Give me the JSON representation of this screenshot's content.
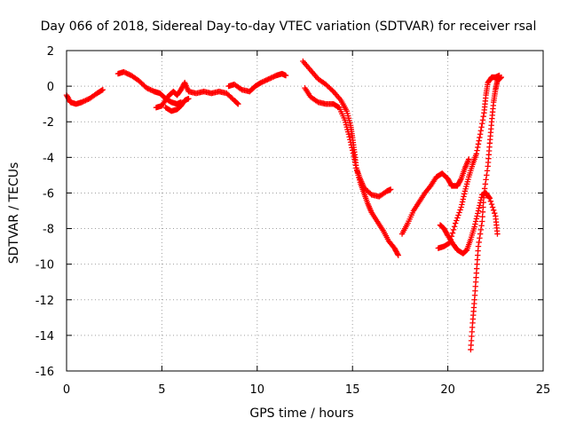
{
  "chart_data": {
    "type": "scatter",
    "title": "Day 066 of 2018, Sidereal Day-to-day VTEC variation (SDTVAR) for receiver rsal",
    "xlabel": "GPS time / hours",
    "ylabel": "SDTVAR / TECUs",
    "xlim": [
      0,
      25
    ],
    "ylim": [
      -16,
      2
    ],
    "xticks": [
      0,
      5,
      10,
      15,
      20,
      25
    ],
    "yticks": [
      -16,
      -14,
      -12,
      -10,
      -8,
      -6,
      -4,
      -2,
      0,
      2
    ],
    "grid": true,
    "marker": "plus",
    "color": "#ff0000",
    "series": [
      {
        "values": [
          [
            0.0,
            -0.5
          ],
          [
            0.2,
            -0.9
          ],
          [
            0.5,
            -1.0
          ],
          [
            0.8,
            -0.9
          ],
          [
            1.2,
            -0.7
          ],
          [
            1.6,
            -0.4
          ],
          [
            1.9,
            -0.2
          ]
        ]
      },
      {
        "values": [
          [
            2.7,
            0.7
          ],
          [
            3.0,
            0.8
          ],
          [
            3.4,
            0.6
          ],
          [
            3.8,
            0.3
          ],
          [
            4.2,
            -0.1
          ],
          [
            4.6,
            -0.3
          ],
          [
            4.9,
            -0.4
          ],
          [
            5.2,
            -0.7
          ],
          [
            5.5,
            -0.9
          ],
          [
            5.8,
            -1.0
          ],
          [
            6.0,
            -0.9
          ]
        ]
      },
      {
        "values": [
          [
            4.7,
            -1.2
          ],
          [
            5.0,
            -1.1
          ],
          [
            5.3,
            -0.6
          ],
          [
            5.6,
            -0.3
          ],
          [
            5.8,
            -0.5
          ],
          [
            6.0,
            -0.2
          ],
          [
            6.2,
            0.2
          ],
          [
            6.4,
            -0.3
          ],
          [
            6.8,
            -0.4
          ],
          [
            7.2,
            -0.3
          ],
          [
            7.6,
            -0.4
          ],
          [
            8.0,
            -0.3
          ],
          [
            8.4,
            -0.4
          ],
          [
            8.8,
            -0.8
          ],
          [
            9.0,
            -1.0
          ]
        ]
      },
      {
        "values": [
          [
            5.2,
            -1.2
          ],
          [
            5.5,
            -1.4
          ],
          [
            5.8,
            -1.3
          ],
          [
            6.0,
            -1.1
          ],
          [
            6.2,
            -0.8
          ],
          [
            6.4,
            -0.7
          ]
        ]
      },
      {
        "values": [
          [
            8.5,
            0.0
          ],
          [
            8.8,
            0.1
          ],
          [
            9.2,
            -0.2
          ],
          [
            9.6,
            -0.3
          ],
          [
            9.9,
            0.0
          ],
          [
            10.2,
            0.2
          ],
          [
            10.6,
            0.4
          ],
          [
            11.0,
            0.6
          ],
          [
            11.3,
            0.7
          ],
          [
            11.5,
            0.6
          ]
        ]
      },
      {
        "values": [
          [
            12.4,
            1.4
          ],
          [
            12.8,
            0.9
          ],
          [
            13.2,
            0.4
          ],
          [
            13.6,
            0.1
          ],
          [
            14.0,
            -0.3
          ],
          [
            14.4,
            -0.8
          ],
          [
            14.7,
            -1.4
          ],
          [
            14.9,
            -2.2
          ],
          [
            15.0,
            -2.9
          ],
          [
            15.1,
            -3.7
          ],
          [
            15.2,
            -4.6
          ],
          [
            15.4,
            -5.2
          ],
          [
            15.6,
            -5.7
          ],
          [
            16.0,
            -6.1
          ],
          [
            16.4,
            -6.2
          ],
          [
            16.8,
            -5.9
          ],
          [
            17.0,
            -5.8
          ]
        ]
      },
      {
        "values": [
          [
            12.5,
            -0.1
          ],
          [
            12.8,
            -0.6
          ],
          [
            13.2,
            -0.9
          ],
          [
            13.6,
            -1.0
          ],
          [
            14.0,
            -1.0
          ],
          [
            14.3,
            -1.2
          ],
          [
            14.6,
            -1.9
          ],
          [
            14.8,
            -2.7
          ],
          [
            15.0,
            -3.6
          ],
          [
            15.2,
            -4.6
          ],
          [
            15.4,
            -5.4
          ],
          [
            15.6,
            -6.0
          ],
          [
            15.8,
            -6.6
          ],
          [
            16.0,
            -7.1
          ],
          [
            16.3,
            -7.6
          ],
          [
            16.6,
            -8.1
          ],
          [
            16.9,
            -8.7
          ],
          [
            17.2,
            -9.1
          ],
          [
            17.4,
            -9.5
          ]
        ]
      },
      {
        "values": [
          [
            17.6,
            -8.3
          ],
          [
            17.9,
            -7.7
          ],
          [
            18.2,
            -7.0
          ],
          [
            18.5,
            -6.5
          ],
          [
            18.8,
            -6.0
          ],
          [
            19.1,
            -5.6
          ],
          [
            19.4,
            -5.1
          ],
          [
            19.7,
            -4.9
          ],
          [
            20.0,
            -5.2
          ],
          [
            20.2,
            -5.6
          ],
          [
            20.5,
            -5.6
          ],
          [
            20.7,
            -5.2
          ],
          [
            20.9,
            -4.6
          ],
          [
            21.1,
            -4.1
          ]
        ]
      },
      {
        "values": [
          [
            19.6,
            -7.8
          ],
          [
            19.8,
            -8.0
          ],
          [
            20.0,
            -8.4
          ],
          [
            20.3,
            -8.9
          ],
          [
            20.5,
            -9.2
          ],
          [
            20.8,
            -9.4
          ],
          [
            21.0,
            -9.2
          ],
          [
            21.2,
            -8.6
          ],
          [
            21.4,
            -7.9
          ],
          [
            21.6,
            -7.0
          ],
          [
            21.8,
            -6.1
          ],
          [
            22.0,
            -6.0
          ],
          [
            22.2,
            -6.3
          ],
          [
            22.5,
            -7.3
          ],
          [
            22.6,
            -8.3
          ]
        ]
      },
      {
        "values": [
          [
            19.5,
            -9.1
          ],
          [
            19.8,
            -9.0
          ],
          [
            20.1,
            -8.8
          ],
          [
            20.4,
            -7.7
          ],
          [
            20.7,
            -6.8
          ],
          [
            20.9,
            -5.9
          ],
          [
            21.1,
            -5.1
          ],
          [
            21.3,
            -4.4
          ],
          [
            21.5,
            -3.8
          ],
          [
            21.7,
            -2.7
          ],
          [
            21.9,
            -1.5
          ],
          [
            22.0,
            -0.5
          ],
          [
            22.1,
            0.2
          ],
          [
            22.3,
            0.5
          ],
          [
            22.5,
            0.5
          ],
          [
            22.7,
            0.6
          ]
        ]
      },
      {
        "values": [
          [
            21.2,
            -14.8
          ],
          [
            21.3,
            -13.3
          ],
          [
            21.4,
            -12.0
          ],
          [
            21.5,
            -10.5
          ],
          [
            21.6,
            -9.0
          ],
          [
            21.8,
            -7.6
          ],
          [
            21.9,
            -6.0
          ],
          [
            22.1,
            -4.5
          ],
          [
            22.2,
            -3.2
          ],
          [
            22.3,
            -2.0
          ],
          [
            22.4,
            -0.9
          ],
          [
            22.5,
            -0.2
          ],
          [
            22.6,
            0.3
          ],
          [
            22.8,
            0.5
          ]
        ]
      }
    ]
  }
}
